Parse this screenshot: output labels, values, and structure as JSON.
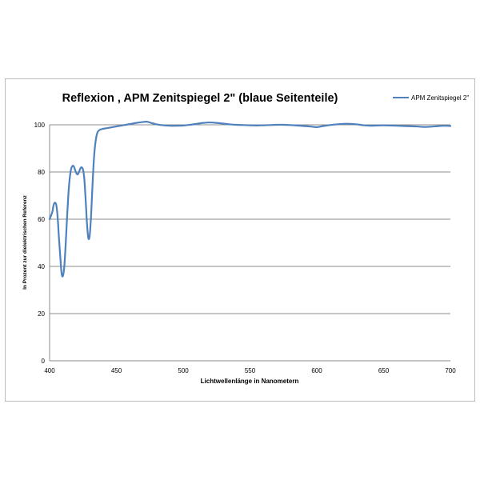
{
  "chart_data": {
    "type": "line",
    "title": "Reflexion , APM Zenitspiegel 2\" (blaue Seitenteile)",
    "xlabel": "Lichtwellenlänge in Nanometern",
    "ylabel": "In Prozent zur dielektrischen Referenz",
    "xlim": [
      400,
      700
    ],
    "ylim": [
      0,
      100
    ],
    "x_ticks": [
      400,
      450,
      500,
      550,
      600,
      650,
      700
    ],
    "y_ticks": [
      0,
      20,
      40,
      60,
      80,
      100
    ],
    "grid": "horizontal",
    "legend_position": "top-right",
    "series": [
      {
        "name": "APM Zenitspiegel 2\"",
        "color": "#4f81bd",
        "x": [
          400,
          402,
          403,
          404,
          405,
          406,
          407,
          408,
          409,
          410,
          411,
          412,
          413,
          414,
          415,
          416,
          417,
          418,
          419,
          420,
          421,
          422,
          423,
          424,
          425,
          426,
          427,
          428,
          429,
          430,
          431,
          432,
          433,
          434,
          435,
          436,
          437,
          438,
          440,
          442,
          445,
          450,
          455,
          460,
          465,
          470,
          473,
          476,
          480,
          485,
          490,
          495,
          500,
          505,
          510,
          515,
          520,
          525,
          530,
          535,
          540,
          545,
          550,
          555,
          560,
          565,
          570,
          575,
          580,
          585,
          590,
          595,
          600,
          605,
          610,
          615,
          620,
          625,
          630,
          635,
          640,
          645,
          650,
          655,
          660,
          665,
          670,
          675,
          680,
          685,
          690,
          695,
          700
        ],
        "y": [
          60,
          63,
          66,
          67,
          66,
          61,
          52,
          44,
          37,
          36,
          40,
          49,
          60,
          70,
          77,
          81,
          82.5,
          82.5,
          81,
          79.5,
          79,
          80,
          81.5,
          82,
          81,
          77,
          68,
          58,
          52,
          53,
          61,
          73,
          84,
          91,
          95,
          97,
          97.6,
          98,
          98.3,
          98.5,
          98.8,
          99.3,
          99.8,
          100.3,
          100.8,
          101.2,
          101.3,
          100.8,
          100.2,
          99.8,
          99.6,
          99.6,
          99.7,
          100,
          100.4,
          100.8,
          101,
          100.8,
          100.5,
          100.2,
          100,
          99.9,
          99.8,
          99.7,
          99.8,
          99.9,
          100,
          100,
          99.9,
          99.7,
          99.5,
          99.3,
          99,
          99.5,
          99.9,
          100.2,
          100.4,
          100.4,
          100.2,
          99.8,
          99.6,
          99.7,
          99.8,
          99.7,
          99.6,
          99.5,
          99.4,
          99.3,
          99.1,
          99.2,
          99.4,
          99.6,
          99.5
        ]
      }
    ]
  }
}
